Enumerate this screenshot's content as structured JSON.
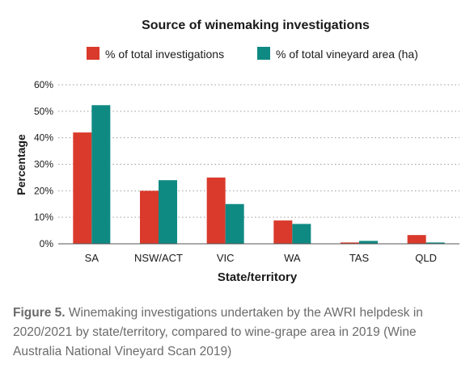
{
  "chart_data": {
    "type": "bar",
    "title": "Source of winemaking investigations",
    "xlabel": "State/territory",
    "ylabel": "Percentage",
    "categories": [
      "SA",
      "NSW/ACT",
      "VIC",
      "WA",
      "TAS",
      "QLD"
    ],
    "series": [
      {
        "name": "% of total investigations",
        "color": "#d93a2b",
        "values": [
          42,
          20,
          25,
          8.8,
          0.5,
          3.3
        ]
      },
      {
        "name": "% of total vineyard area (ha)",
        "color": "#0f8a83",
        "values": [
          52.3,
          24,
          15,
          7.5,
          1.1,
          0.5
        ]
      }
    ],
    "ylim": [
      0,
      60
    ],
    "yticks": [
      "0%",
      "10%",
      "20%",
      "30%",
      "40%",
      "50%",
      "60%"
    ],
    "grid": "dotted-horizontal",
    "legend": "top-center"
  },
  "caption": {
    "label": "Figure 5.",
    "text": "Winemaking investigations undertaken by the AWRI helpdesk in 2020/2021 by state/territory, compared to wine-grape area in 2019 (Wine Australia National Vineyard Scan 2019)"
  }
}
